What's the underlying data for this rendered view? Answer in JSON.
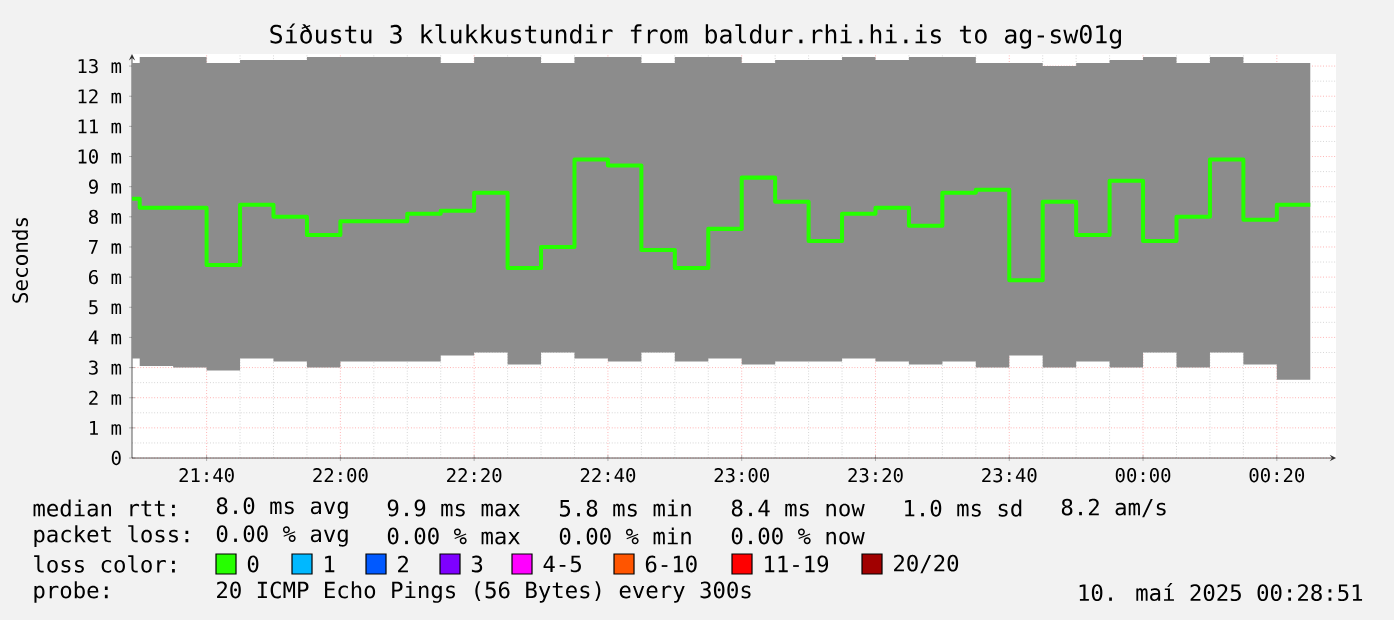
{
  "chart_data": {
    "type": "step",
    "title": "Síðustu 3 klukkustundir from baldur.rhi.hi.is to ag-sw01g",
    "ylabel": "Seconds",
    "legend_title": "loss color:",
    "legend": "bottom",
    "grid": true,
    "annotations": [
      "median rtt:",
      "8.0 ms avg",
      "9.9 ms max",
      "5.8 ms min",
      "8.4 ms now",
      "1.0 ms sd",
      "8.2 am/s",
      "packet loss:",
      "0.00 % avg",
      "0.00 % max",
      "0.00 % min",
      "0.00 % now",
      "probe:",
      "20 ICMP Echo Pings (56 Bytes) every 300s",
      "10. maí 2025 00:28:51"
    ],
    "xlim": [
      "2025-05-09T21:28:51",
      "2025-05-10T00:28:51"
    ],
    "xticks": [
      {
        "value": "2025-05-09T21:40",
        "label": "21:40"
      },
      {
        "value": "2025-05-09T22:00",
        "label": "22:00"
      },
      {
        "value": "2025-05-09T22:20",
        "label": "22:20"
      },
      {
        "value": "2025-05-09T22:40",
        "label": "22:40"
      },
      {
        "value": "2025-05-09T23:00",
        "label": "23:00"
      },
      {
        "value": "2025-05-09T23:20",
        "label": "23:20"
      },
      {
        "value": "2025-05-09T23:40",
        "label": "23:40"
      },
      {
        "value": "2025-05-10T00:00",
        "label": "00:00"
      },
      {
        "value": "2025-05-10T00:20",
        "label": "00:20"
      }
    ],
    "ylim": [
      0,
      13.4
    ],
    "yticks": [
      0,
      {
        "value": 1,
        "label": "1 m"
      },
      {
        "value": 2,
        "label": "2 m"
      },
      {
        "value": 3,
        "label": "3 m"
      },
      {
        "value": 4,
        "label": "4 m"
      },
      {
        "value": 5,
        "label": "5 m"
      },
      {
        "value": 6,
        "label": "6 m"
      },
      {
        "value": 7,
        "label": "7 m"
      },
      {
        "value": 8,
        "label": "8 m"
      },
      {
        "value": 9,
        "label": "9 m"
      },
      {
        "value": 10,
        "label": "10 m"
      },
      {
        "value": 11,
        "label": "11 m"
      },
      {
        "value": 12,
        "label": "12 m"
      },
      {
        "value": 13,
        "label": "13 m"
      }
    ],
    "x": [
      "2025-05-09T21:28:51",
      "2025-05-09T21:30",
      "2025-05-09T21:35",
      "2025-05-09T21:40",
      "2025-05-09T21:45",
      "2025-05-09T21:50",
      "2025-05-09T21:55",
      "2025-05-09T22:00",
      "2025-05-09T22:05",
      "2025-05-09T22:10",
      "2025-05-09T22:15",
      "2025-05-09T22:20",
      "2025-05-09T22:25",
      "2025-05-09T22:30",
      "2025-05-09T22:35",
      "2025-05-09T22:40",
      "2025-05-09T22:45",
      "2025-05-09T22:50",
      "2025-05-09T22:55",
      "2025-05-09T23:00",
      "2025-05-09T23:05",
      "2025-05-09T23:10",
      "2025-05-09T23:15",
      "2025-05-09T23:20",
      "2025-05-09T23:25",
      "2025-05-09T23:30",
      "2025-05-09T23:35",
      "2025-05-09T23:40",
      "2025-05-09T23:45",
      "2025-05-09T23:50",
      "2025-05-09T23:55",
      "2025-05-10T00:00",
      "2025-05-10T00:05",
      "2025-05-10T00:10",
      "2025-05-10T00:15",
      "2025-05-10T00:20",
      "2025-05-10T00:25"
    ],
    "series": [
      {
        "name": "0",
        "color": "#26ff00",
        "values": [
          8.6,
          8.3,
          8.3,
          6.4,
          8.4,
          8.0,
          7.4,
          7.85,
          7.85,
          8.1,
          8.2,
          8.8,
          6.3,
          7.0,
          9.9,
          9.7,
          6.9,
          6.3,
          7.6,
          9.3,
          8.5,
          7.2,
          8.1,
          8.3,
          7.7,
          8.8,
          8.9,
          5.9,
          8.5,
          7.4,
          9.2,
          7.2,
          8.0,
          9.9,
          7.9,
          8.4,
          8.4
        ],
        "lower": [
          3.3,
          3.05,
          3.0,
          2.9,
          3.3,
          3.2,
          3.0,
          3.2,
          3.2,
          3.2,
          3.4,
          3.5,
          3.1,
          3.5,
          3.3,
          3.2,
          3.5,
          3.2,
          3.3,
          3.1,
          3.2,
          3.2,
          3.3,
          3.2,
          3.1,
          3.2,
          3.0,
          3.4,
          3.0,
          3.2,
          3.0,
          3.5,
          3.0,
          3.5,
          3.1,
          2.6,
          2.6
        ],
        "upper": [
          13.1,
          13.3,
          13.3,
          13.1,
          13.2,
          13.2,
          13.3,
          13.3,
          13.3,
          13.3,
          13.1,
          13.3,
          13.3,
          13.1,
          13.3,
          13.3,
          13.1,
          13.3,
          13.3,
          13.1,
          13.2,
          13.2,
          13.3,
          13.2,
          13.3,
          13.3,
          13.1,
          13.1,
          13.0,
          13.1,
          13.2,
          13.3,
          13.1,
          13.3,
          13.1,
          13.1,
          13.1
        ]
      },
      {
        "name": "1",
        "color": "#00b8ff",
        "values": [
          null,
          null,
          null,
          null,
          null,
          null,
          null,
          null,
          null,
          null,
          null,
          null,
          null,
          null,
          null,
          null,
          null,
          null,
          null,
          null,
          null,
          null,
          null,
          null,
          null,
          null,
          null,
          null,
          null,
          null,
          null,
          null,
          null,
          null,
          null,
          null,
          null
        ]
      },
      {
        "name": "2",
        "color": "#0059ff",
        "values": [
          null,
          null,
          null,
          null,
          null,
          null,
          null,
          null,
          null,
          null,
          null,
          null,
          null,
          null,
          null,
          null,
          null,
          null,
          null,
          null,
          null,
          null,
          null,
          null,
          null,
          null,
          null,
          null,
          null,
          null,
          null,
          null,
          null,
          null,
          null,
          null,
          null
        ]
      },
      {
        "name": "3",
        "color": "#7e00ff",
        "values": [
          null,
          null,
          null,
          null,
          null,
          null,
          null,
          null,
          null,
          null,
          null,
          null,
          null,
          null,
          null,
          null,
          null,
          null,
          null,
          null,
          null,
          null,
          null,
          null,
          null,
          null,
          null,
          null,
          null,
          null,
          null,
          null,
          null,
          null,
          null,
          null,
          null
        ]
      },
      {
        "name": "4-5",
        "color": "#ff00ff",
        "values": [
          null,
          null,
          null,
          null,
          null,
          null,
          null,
          null,
          null,
          null,
          null,
          null,
          null,
          null,
          null,
          null,
          null,
          null,
          null,
          null,
          null,
          null,
          null,
          null,
          null,
          null,
          null,
          null,
          null,
          null,
          null,
          null,
          null,
          null,
          null,
          null,
          null
        ]
      },
      {
        "name": "6-10",
        "color": "#ff5500",
        "values": [
          null,
          null,
          null,
          null,
          null,
          null,
          null,
          null,
          null,
          null,
          null,
          null,
          null,
          null,
          null,
          null,
          null,
          null,
          null,
          null,
          null,
          null,
          null,
          null,
          null,
          null,
          null,
          null,
          null,
          null,
          null,
          null,
          null,
          null,
          null,
          null,
          null
        ]
      },
      {
        "name": "11-19",
        "color": "#ff0000",
        "values": [
          null,
          null,
          null,
          null,
          null,
          null,
          null,
          null,
          null,
          null,
          null,
          null,
          null,
          null,
          null,
          null,
          null,
          null,
          null,
          null,
          null,
          null,
          null,
          null,
          null,
          null,
          null,
          null,
          null,
          null,
          null,
          null,
          null,
          null,
          null,
          null,
          null
        ]
      },
      {
        "name": "20/20",
        "color": "#a10000",
        "values": [
          null,
          null,
          null,
          null,
          null,
          null,
          null,
          null,
          null,
          null,
          null,
          null,
          null,
          null,
          null,
          null,
          null,
          null,
          null,
          null,
          null,
          null,
          null,
          null,
          null,
          null,
          null,
          null,
          null,
          null,
          null,
          null,
          null,
          null,
          null,
          null,
          null
        ]
      }
    ]
  }
}
